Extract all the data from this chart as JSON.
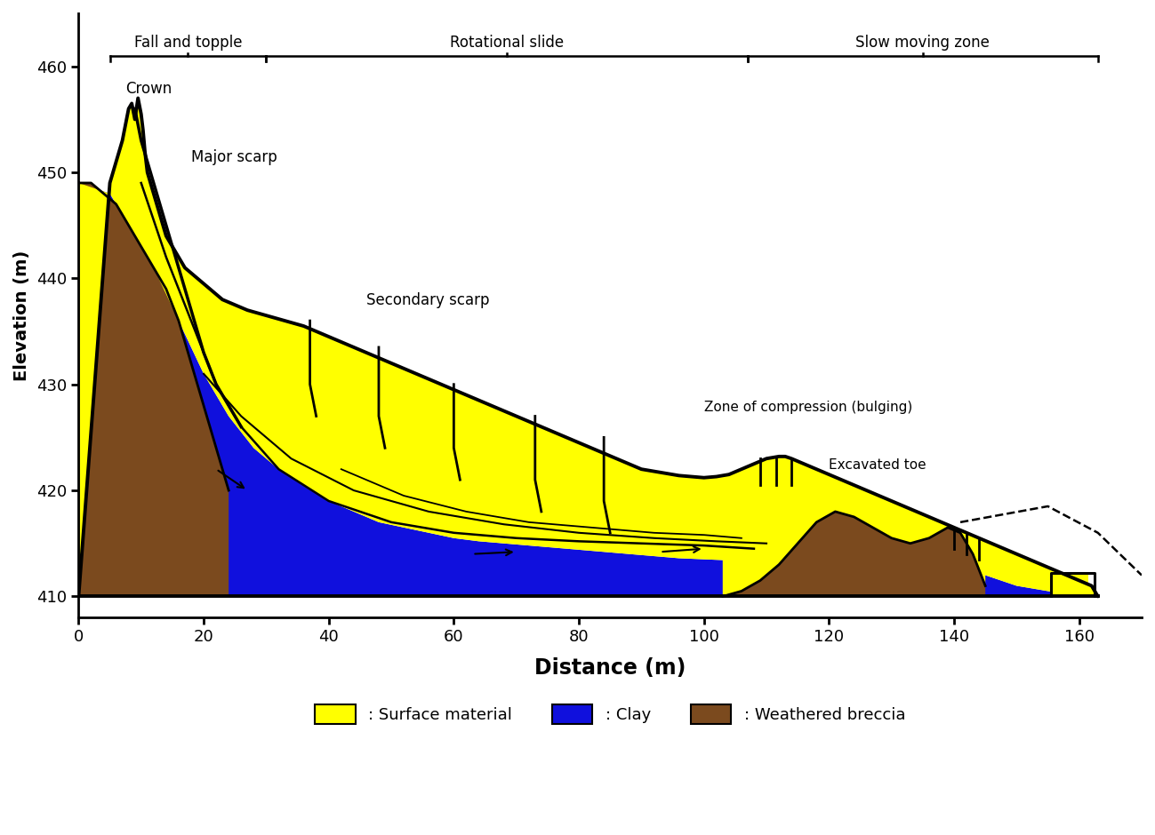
{
  "xlabel": "Distance (m)",
  "ylabel": "Elevation (m)",
  "xlim": [
    0,
    170
  ],
  "ylim": [
    408,
    465
  ],
  "xticks": [
    0,
    20,
    40,
    60,
    80,
    100,
    120,
    140,
    160
  ],
  "yticks": [
    410,
    420,
    430,
    440,
    450,
    460
  ],
  "color_yellow": "#FFFF00",
  "color_blue": "#1010DD",
  "color_brown": "#7B4A1E",
  "color_black": "#000000",
  "color_white": "#FFFFFF"
}
